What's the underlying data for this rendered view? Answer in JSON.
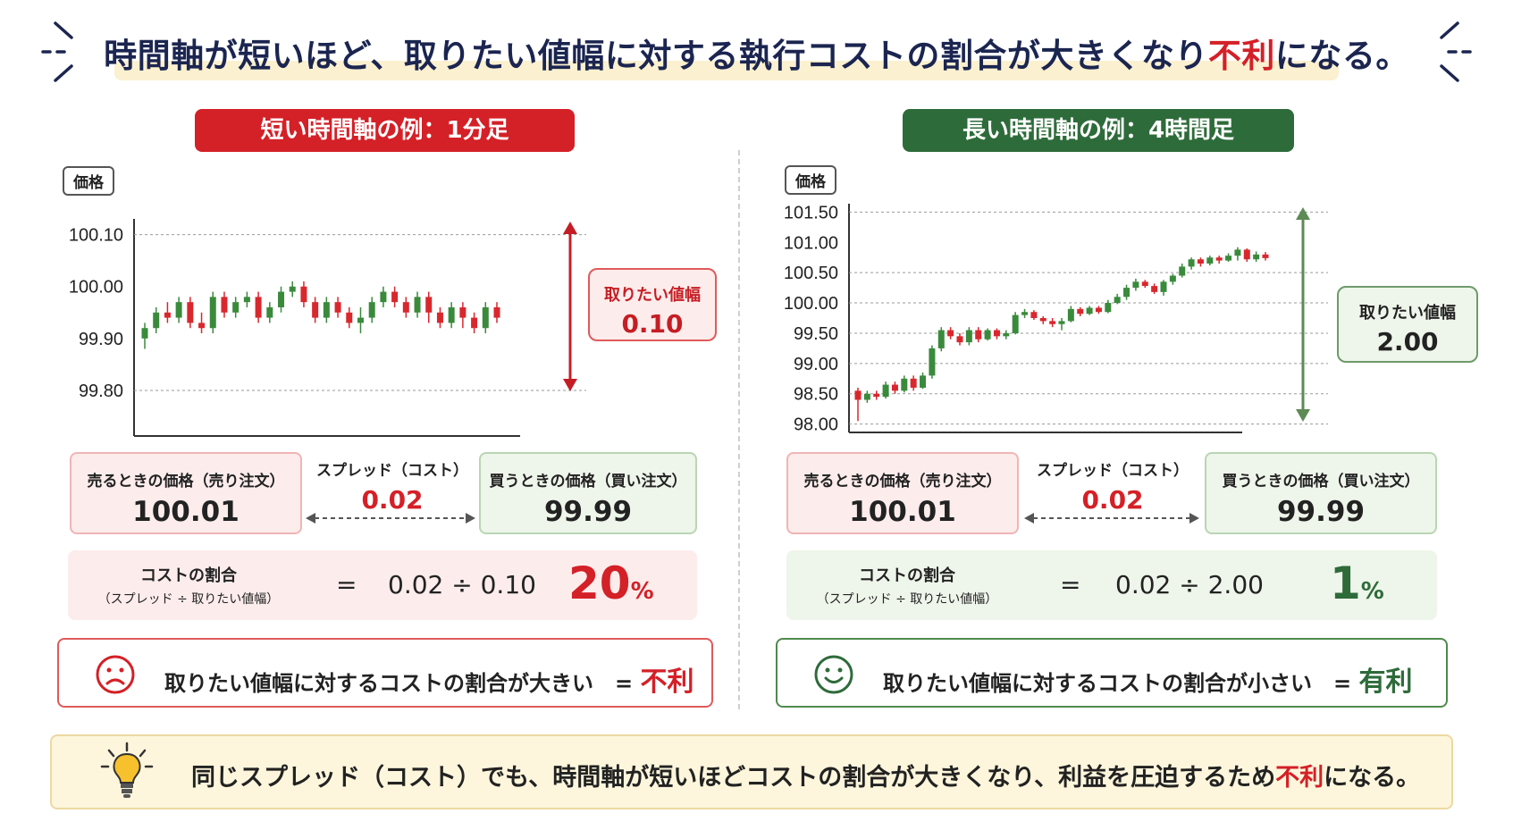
{
  "title": {
    "before": "時間軸が短いほど、取りたい値幅に対する執行コストの割合が大きくなり",
    "highlight": "不利",
    "after": "になる。"
  },
  "left": {
    "heading": "短い時間軸の例：1分足",
    "price_tag": "価格",
    "chart_data": {
      "type": "candlestick",
      "ylabel": "価格",
      "ylim": [
        99.75,
        100.12
      ],
      "yticks": [
        "100.10",
        "100.00",
        "99.90",
        "99.80"
      ],
      "ytick_values": [
        100.1,
        100.0,
        99.9,
        99.8
      ],
      "gridlines": [
        100.1,
        99.8
      ],
      "candles": [
        {
          "o": 99.9,
          "c": 99.92,
          "h": 99.93,
          "l": 99.88
        },
        {
          "o": 99.92,
          "c": 99.95,
          "h": 99.96,
          "l": 99.91
        },
        {
          "o": 99.95,
          "c": 99.94,
          "h": 99.97,
          "l": 99.93
        },
        {
          "o": 99.94,
          "c": 99.97,
          "h": 99.98,
          "l": 99.93
        },
        {
          "o": 99.97,
          "c": 99.93,
          "h": 99.98,
          "l": 99.92
        },
        {
          "o": 99.93,
          "c": 99.92,
          "h": 99.95,
          "l": 99.91
        },
        {
          "o": 99.92,
          "c": 99.98,
          "h": 99.99,
          "l": 99.91
        },
        {
          "o": 99.98,
          "c": 99.95,
          "h": 99.99,
          "l": 99.94
        },
        {
          "o": 99.95,
          "c": 99.97,
          "h": 99.98,
          "l": 99.94
        },
        {
          "o": 99.97,
          "c": 99.98,
          "h": 99.99,
          "l": 99.96
        },
        {
          "o": 99.98,
          "c": 99.94,
          "h": 99.99,
          "l": 99.93
        },
        {
          "o": 99.94,
          "c": 99.96,
          "h": 99.97,
          "l": 99.93
        },
        {
          "o": 99.96,
          "c": 99.99,
          "h": 100.0,
          "l": 99.95
        },
        {
          "o": 99.99,
          "c": 100.0,
          "h": 100.01,
          "l": 99.98
        },
        {
          "o": 100.0,
          "c": 99.97,
          "h": 100.01,
          "l": 99.96
        },
        {
          "o": 99.97,
          "c": 99.94,
          "h": 99.98,
          "l": 99.93
        },
        {
          "o": 99.94,
          "c": 99.97,
          "h": 99.98,
          "l": 99.93
        },
        {
          "o": 99.97,
          "c": 99.95,
          "h": 99.98,
          "l": 99.94
        },
        {
          "o": 99.95,
          "c": 99.93,
          "h": 99.96,
          "l": 99.92
        },
        {
          "o": 99.93,
          "c": 99.94,
          "h": 99.96,
          "l": 99.91
        },
        {
          "o": 99.94,
          "c": 99.97,
          "h": 99.98,
          "l": 99.93
        },
        {
          "o": 99.97,
          "c": 99.99,
          "h": 100.0,
          "l": 99.96
        },
        {
          "o": 99.99,
          "c": 99.97,
          "h": 100.0,
          "l": 99.96
        },
        {
          "o": 99.97,
          "c": 99.95,
          "h": 99.98,
          "l": 99.94
        },
        {
          "o": 99.95,
          "c": 99.98,
          "h": 99.99,
          "l": 99.94
        },
        {
          "o": 99.98,
          "c": 99.95,
          "h": 99.99,
          "l": 99.93
        },
        {
          "o": 99.95,
          "c": 99.93,
          "h": 99.96,
          "l": 99.92
        },
        {
          "o": 99.93,
          "c": 99.96,
          "h": 99.97,
          "l": 99.92
        },
        {
          "o": 99.96,
          "c": 99.94,
          "h": 99.97,
          "l": 99.92
        },
        {
          "o": 99.94,
          "c": 99.92,
          "h": 99.95,
          "l": 99.91
        },
        {
          "o": 99.92,
          "c": 99.96,
          "h": 99.97,
          "l": 99.91
        },
        {
          "o": 99.96,
          "c": 99.94,
          "h": 99.97,
          "l": 99.93
        }
      ]
    },
    "want": {
      "label": "取りたい値幅",
      "value": "0.10"
    },
    "sell": {
      "label": "売るときの価格（売り注文）",
      "value": "100.01"
    },
    "spread": {
      "label": "スプレッド（コスト）",
      "value": "0.02"
    },
    "buy": {
      "label": "買うときの価格（買い注文）",
      "value": "99.99"
    },
    "cost": {
      "label": "コストの割合",
      "sub": "（スプレッド ÷ 取りたい値幅）",
      "eq": "=",
      "formula": "0.02 ÷ 0.10",
      "pct": "20",
      "pct_sign": "%"
    },
    "verdict": {
      "text": "取りたい値幅に対するコストの割合が大きい　=",
      "result": "不利"
    }
  },
  "right": {
    "heading": "長い時間軸の例：4時間足",
    "price_tag": "価格",
    "chart_data": {
      "type": "candlestick",
      "ylabel": "価格",
      "ylim": [
        97.95,
        101.55
      ],
      "yticks": [
        "101.50",
        "101.00",
        "100.50",
        "100.00",
        "99.50",
        "99.00",
        "98.50",
        "98.00"
      ],
      "ytick_values": [
        101.5,
        101.0,
        100.5,
        100.0,
        99.5,
        99.0,
        98.5,
        98.0
      ],
      "gridlines": [
        101.5,
        100.5,
        100.0,
        99.5,
        99.0,
        98.5,
        98.0
      ],
      "candles": [
        {
          "o": 98.55,
          "c": 98.4,
          "h": 98.6,
          "l": 98.05
        },
        {
          "o": 98.4,
          "c": 98.5,
          "h": 98.55,
          "l": 98.35
        },
        {
          "o": 98.5,
          "c": 98.45,
          "h": 98.55,
          "l": 98.4
        },
        {
          "o": 98.45,
          "c": 98.65,
          "h": 98.7,
          "l": 98.42
        },
        {
          "o": 98.65,
          "c": 98.55,
          "h": 98.7,
          "l": 98.5
        },
        {
          "o": 98.55,
          "c": 98.75,
          "h": 98.8,
          "l": 98.52
        },
        {
          "o": 98.75,
          "c": 98.6,
          "h": 98.8,
          "l": 98.55
        },
        {
          "o": 98.6,
          "c": 98.8,
          "h": 98.85,
          "l": 98.58
        },
        {
          "o": 98.8,
          "c": 99.25,
          "h": 99.3,
          "l": 98.75
        },
        {
          "o": 99.25,
          "c": 99.55,
          "h": 99.6,
          "l": 99.2
        },
        {
          "o": 99.55,
          "c": 99.45,
          "h": 99.6,
          "l": 99.4
        },
        {
          "o": 99.45,
          "c": 99.35,
          "h": 99.5,
          "l": 99.3
        },
        {
          "o": 99.35,
          "c": 99.55,
          "h": 99.6,
          "l": 99.3
        },
        {
          "o": 99.55,
          "c": 99.4,
          "h": 99.6,
          "l": 99.35
        },
        {
          "o": 99.4,
          "c": 99.55,
          "h": 99.58,
          "l": 99.38
        },
        {
          "o": 99.55,
          "c": 99.45,
          "h": 99.58,
          "l": 99.4
        },
        {
          "o": 99.45,
          "c": 99.5,
          "h": 99.55,
          "l": 99.4
        },
        {
          "o": 99.5,
          "c": 99.8,
          "h": 99.85,
          "l": 99.48
        },
        {
          "o": 99.8,
          "c": 99.85,
          "h": 99.9,
          "l": 99.75
        },
        {
          "o": 99.85,
          "c": 99.75,
          "h": 99.88,
          "l": 99.72
        },
        {
          "o": 99.75,
          "c": 99.7,
          "h": 99.78,
          "l": 99.65
        },
        {
          "o": 99.7,
          "c": 99.65,
          "h": 99.75,
          "l": 99.6
        },
        {
          "o": 99.65,
          "c": 99.7,
          "h": 99.75,
          "l": 99.55
        },
        {
          "o": 99.7,
          "c": 99.9,
          "h": 99.95,
          "l": 99.68
        },
        {
          "o": 99.9,
          "c": 99.82,
          "h": 99.93,
          "l": 99.78
        },
        {
          "o": 99.82,
          "c": 99.92,
          "h": 99.95,
          "l": 99.8
        },
        {
          "o": 99.92,
          "c": 99.85,
          "h": 99.95,
          "l": 99.82
        },
        {
          "o": 99.85,
          "c": 100.0,
          "h": 100.05,
          "l": 99.83
        },
        {
          "o": 100.0,
          "c": 100.1,
          "h": 100.15,
          "l": 99.98
        },
        {
          "o": 100.1,
          "c": 100.25,
          "h": 100.3,
          "l": 100.05
        },
        {
          "o": 100.25,
          "c": 100.35,
          "h": 100.4,
          "l": 100.2
        },
        {
          "o": 100.35,
          "c": 100.28,
          "h": 100.38,
          "l": 100.25
        },
        {
          "o": 100.28,
          "c": 100.18,
          "h": 100.32,
          "l": 100.15
        },
        {
          "o": 100.18,
          "c": 100.35,
          "h": 100.38,
          "l": 100.12
        },
        {
          "o": 100.35,
          "c": 100.45,
          "h": 100.48,
          "l": 100.3
        },
        {
          "o": 100.45,
          "c": 100.6,
          "h": 100.65,
          "l": 100.42
        },
        {
          "o": 100.6,
          "c": 100.72,
          "h": 100.75,
          "l": 100.55
        },
        {
          "o": 100.72,
          "c": 100.65,
          "h": 100.75,
          "l": 100.6
        },
        {
          "o": 100.65,
          "c": 100.75,
          "h": 100.78,
          "l": 100.62
        },
        {
          "o": 100.75,
          "c": 100.7,
          "h": 100.78,
          "l": 100.65
        },
        {
          "o": 100.7,
          "c": 100.78,
          "h": 100.82,
          "l": 100.68
        },
        {
          "o": 100.78,
          "c": 100.88,
          "h": 100.92,
          "l": 100.7
        },
        {
          "o": 100.88,
          "c": 100.72,
          "h": 100.9,
          "l": 100.68
        },
        {
          "o": 100.72,
          "c": 100.8,
          "h": 100.85,
          "l": 100.68
        },
        {
          "o": 100.8,
          "c": 100.74,
          "h": 100.84,
          "l": 100.7
        }
      ]
    },
    "want": {
      "label": "取りたい値幅",
      "value": "2.00"
    },
    "sell": {
      "label": "売るときの価格（売り注文）",
      "value": "100.01"
    },
    "spread": {
      "label": "スプレッド（コスト）",
      "value": "0.02"
    },
    "buy": {
      "label": "買うときの価格（買い注文）",
      "value": "99.99"
    },
    "cost": {
      "label": "コストの割合",
      "sub": "（スプレッド ÷ 取りたい値幅）",
      "eq": "=",
      "formula": "0.02 ÷ 2.00",
      "pct": "1",
      "pct_sign": "%"
    },
    "verdict": {
      "text": "取りたい値幅に対するコストの割合が小さい　=",
      "result": "有利"
    }
  },
  "summary": {
    "before": "同じスプレッド（コスト）でも、時間軸が短いほどコストの割合が大きくなり、利益を圧迫するため",
    "highlight": "不利",
    "after": "になる。"
  },
  "icons": {
    "title_deco": "bracket-deco-icon",
    "sad": "sad-face-icon",
    "smile": "smile-face-icon",
    "bulb": "light-bulb-icon"
  },
  "colors": {
    "navy": "#1b2550",
    "red": "#d42027",
    "green": "#2e6b3a",
    "candle_up": "#3a8a3c",
    "candle_down": "#d9272e"
  }
}
